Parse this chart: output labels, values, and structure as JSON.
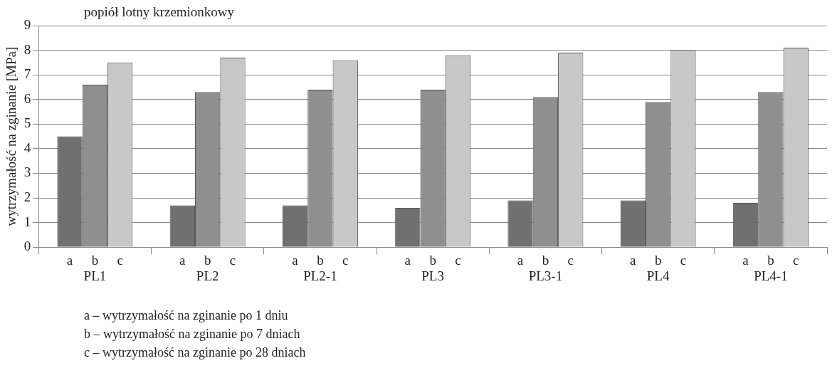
{
  "chart_data": {
    "type": "bar",
    "title": "popiół lotny krzemionkowy",
    "ylabel": "wytrzymałość na zginanie [MPa]",
    "categories": [
      "PL1",
      "PL2",
      "PL2-1",
      "PL3",
      "PL3-1",
      "PL4",
      "PL4-1"
    ],
    "series": [
      {
        "name": "a",
        "color": "#707070",
        "values": [
          4.5,
          1.7,
          1.7,
          1.6,
          1.9,
          1.9,
          1.8
        ]
      },
      {
        "name": "b",
        "color": "#8f8f8f",
        "values": [
          6.6,
          6.3,
          6.4,
          6.4,
          6.1,
          5.9,
          6.3
        ]
      },
      {
        "name": "c",
        "color": "#c8c8c8",
        "values": [
          7.5,
          7.7,
          7.6,
          7.8,
          7.9,
          8.0,
          8.1
        ]
      }
    ],
    "ylim": [
      0,
      9
    ],
    "yticks": [
      0,
      1,
      2,
      3,
      4,
      5,
      6,
      7,
      8,
      9
    ],
    "grid": "y",
    "legend": false,
    "annotations": [
      "a – wytrzymałość na zginanie po 1 dniu",
      "b – wytrzymałość na zginanie po 7 dniach",
      "c – wytrzymałość na zginanie po 28 dniach"
    ]
  }
}
